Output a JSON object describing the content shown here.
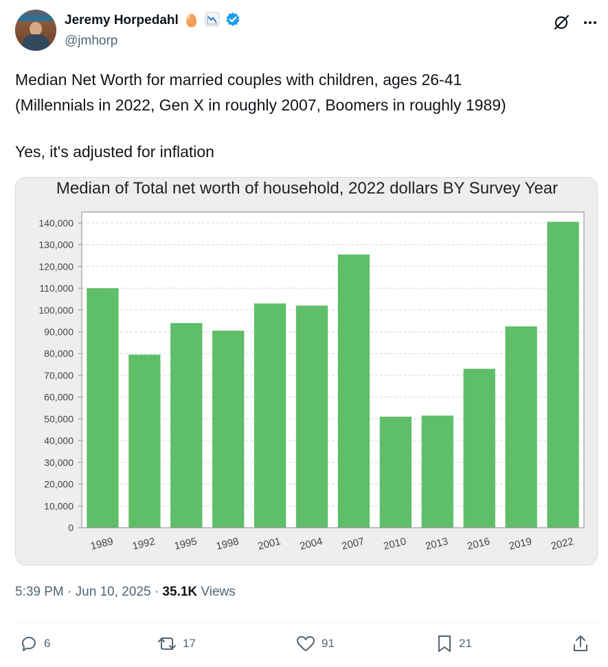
{
  "author": {
    "display_name": "Jeremy Horpedahl",
    "handle": "@jmhorp",
    "emoji": "🥚",
    "verified": true
  },
  "tweet": {
    "line1": "Median Net Worth for married couples with children, ages 26-41",
    "line2": "(Millennials in 2022, Gen X in roughly 2007, Boomers in roughly 1989)",
    "line3": "Yes, it's adjusted for inflation"
  },
  "meta": {
    "time": "5:39 PM",
    "separator": "·",
    "date": "Jun 10, 2025",
    "views_count": "35.1K",
    "views_label": "Views"
  },
  "actions": {
    "replies": "6",
    "reposts": "17",
    "likes": "91",
    "bookmarks": "21"
  },
  "colors": {
    "bar": "#5fbe68",
    "verified": "#1d9bf0",
    "muted": "#536471"
  },
  "chart_data": {
    "type": "bar",
    "title": "Median of Total net worth of household, 2022 dollars BY Survey Year",
    "xlabel": "",
    "ylabel": "",
    "categories": [
      "1989",
      "1992",
      "1995",
      "1998",
      "2001",
      "2004",
      "2007",
      "2010",
      "2013",
      "2016",
      "2019",
      "2022"
    ],
    "values": [
      110000,
      79500,
      94000,
      90500,
      103000,
      102000,
      125500,
      51000,
      51500,
      73000,
      92500,
      140500
    ],
    "ylim": [
      0,
      145000
    ],
    "yticks": [
      0,
      10000,
      20000,
      30000,
      40000,
      50000,
      60000,
      70000,
      80000,
      90000,
      100000,
      110000,
      120000,
      130000,
      140000
    ],
    "ytick_labels": [
      "0",
      "10,000",
      "20,000",
      "30,000",
      "40,000",
      "50,000",
      "60,000",
      "70,000",
      "80,000",
      "90,000",
      "100,000",
      "110,000",
      "120,000",
      "130,000",
      "140,000"
    ],
    "grid": true
  }
}
